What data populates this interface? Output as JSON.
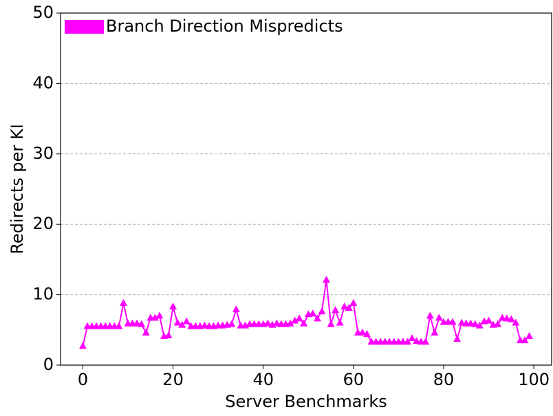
{
  "chart_data": {
    "type": "line",
    "xlabel": "Server Benchmarks",
    "ylabel": "Redirects per KI",
    "x": [
      0,
      1,
      2,
      3,
      4,
      5,
      6,
      7,
      8,
      9,
      10,
      11,
      12,
      13,
      14,
      15,
      16,
      17,
      18,
      19,
      20,
      21,
      22,
      23,
      24,
      25,
      26,
      27,
      28,
      29,
      30,
      31,
      32,
      33,
      34,
      35,
      36,
      37,
      38,
      39,
      40,
      41,
      42,
      43,
      44,
      45,
      46,
      47,
      48,
      49,
      50,
      51,
      52,
      53,
      54,
      55,
      56,
      57,
      58,
      59,
      60,
      61,
      62,
      63,
      64,
      65,
      66,
      67,
      68,
      69,
      70,
      71,
      72,
      73,
      74,
      75,
      76,
      77,
      78,
      79,
      80,
      81,
      82,
      83,
      84,
      85,
      86,
      87,
      88,
      89,
      90,
      91,
      92,
      93,
      94,
      95,
      96,
      97,
      98,
      99
    ],
    "series": [
      {
        "name": "Branch Direction Mispredicts",
        "color": "#ff00ff",
        "values": [
          2.7,
          5.5,
          5.5,
          5.5,
          5.5,
          5.5,
          5.5,
          5.5,
          5.5,
          8.8,
          5.9,
          5.9,
          5.9,
          5.8,
          4.6,
          6.7,
          6.7,
          7.0,
          4.1,
          4.2,
          8.3,
          6.0,
          5.7,
          6.2,
          5.5,
          5.5,
          5.5,
          5.6,
          5.5,
          5.5,
          5.6,
          5.6,
          5.7,
          5.8,
          7.9,
          5.6,
          5.6,
          5.8,
          5.8,
          5.8,
          5.8,
          5.9,
          5.7,
          5.9,
          5.8,
          5.8,
          5.9,
          6.3,
          6.6,
          5.9,
          7.2,
          7.3,
          6.6,
          7.6,
          12.1,
          5.8,
          7.8,
          6.0,
          8.3,
          8.1,
          8.8,
          4.6,
          4.6,
          4.4,
          3.3,
          3.3,
          3.3,
          3.3,
          3.3,
          3.3,
          3.3,
          3.3,
          3.3,
          3.8,
          3.4,
          3.3,
          3.3,
          7.0,
          4.6,
          6.7,
          6.1,
          6.1,
          6.1,
          3.7,
          6.0,
          5.9,
          5.9,
          5.8,
          5.6,
          6.2,
          6.3,
          5.7,
          5.8,
          6.7,
          6.6,
          6.5,
          6.0,
          3.5,
          3.5,
          4.1
        ]
      }
    ],
    "xlim": [
      -4.95,
      103.95
    ],
    "xticks": [
      0,
      20,
      40,
      60,
      80,
      100
    ],
    "ylim": [
      0,
      50
    ],
    "yticks": [
      0,
      10,
      20,
      30,
      40,
      50
    ],
    "grid": true,
    "legend": "upper left",
    "marker": "triangle"
  }
}
